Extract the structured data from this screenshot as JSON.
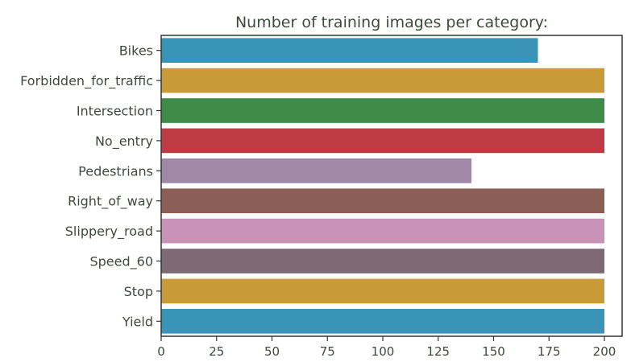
{
  "chart_data": {
    "type": "bar",
    "orientation": "horizontal",
    "title": "Number of training images per category:",
    "xlabel": "",
    "ylabel": "",
    "categories": [
      "Bikes",
      "Forbidden_for_traffic",
      "Intersection",
      "No_entry",
      "Pedestrians",
      "Right_of_way",
      "Slippery_road",
      "Speed_60",
      "Stop",
      "Yield"
    ],
    "values": [
      170,
      200,
      200,
      200,
      140,
      200,
      200,
      200,
      200,
      200
    ],
    "colors": [
      "#3a94b8",
      "#c99a38",
      "#3e8a47",
      "#bf3b44",
      "#9f88a8",
      "#8b5f55",
      "#c993b7",
      "#7d6a75",
      "#c99a38",
      "#3a94b8"
    ],
    "xlim": [
      0,
      208
    ],
    "xticks": [
      0,
      25,
      50,
      75,
      100,
      125,
      150,
      175,
      200
    ],
    "grid": false,
    "legend": "none"
  }
}
